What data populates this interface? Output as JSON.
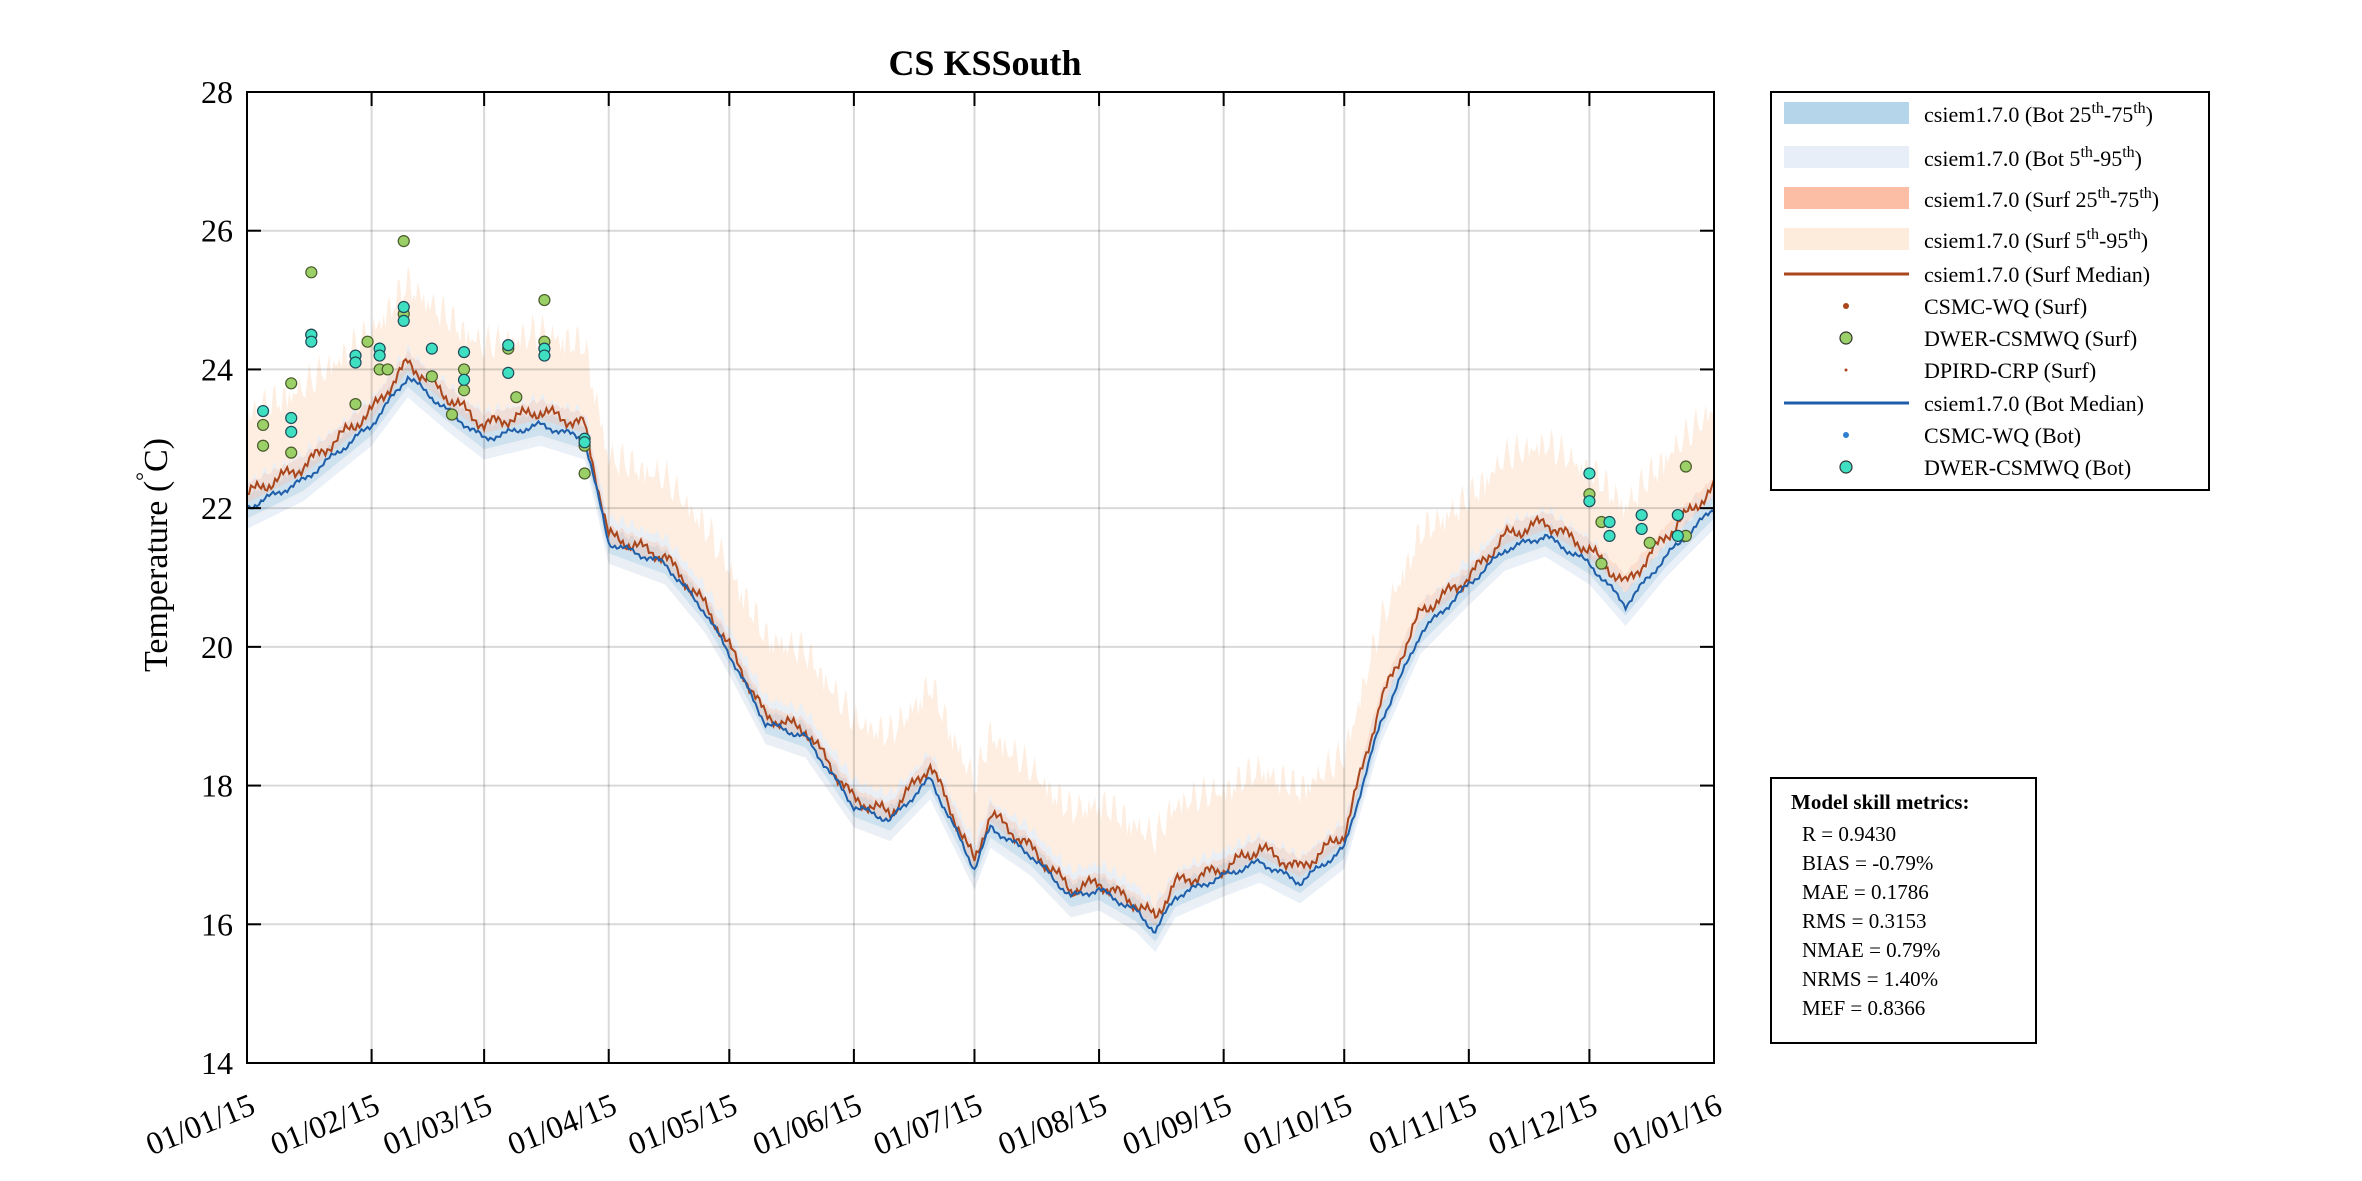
{
  "chart_data": {
    "type": "line",
    "title": "CS KSSouth",
    "ylabel": "Temperature (°C)",
    "ylabel_main": "Temperature (",
    "ylabel_unit": "C)",
    "ylim": [
      14,
      28
    ],
    "yticks": [
      14,
      16,
      18,
      20,
      22,
      24,
      26,
      28
    ],
    "xlim": [
      "2015-01-01",
      "2016-01-01"
    ],
    "xtick_labels": [
      "01/01/15",
      "01/02/15",
      "01/03/15",
      "01/04/15",
      "01/05/15",
      "01/06/15",
      "01/07/15",
      "01/08/15",
      "01/09/15",
      "01/10/15",
      "01/11/15",
      "01/12/15",
      "01/01/16"
    ],
    "grid": true,
    "legend_position": "outside-top-right",
    "colors": {
      "bot_iqr": "#b5d5ea",
      "bot_90": "#e8eef7",
      "surf_iqr": "#fcbfa6",
      "surf_90": "#fdebdc",
      "surf_median": "#a9461c",
      "bot_median": "#1f5ea8",
      "csmc_surf": "#a9461c",
      "dwer_surf_fill": "#9bd068",
      "dpird_surf": "#a9461c",
      "csmc_bot": "#2e7fd1",
      "dwer_bot_fill": "#3fe0c2"
    },
    "series": [
      {
        "name": "csiem1.7.0 (Surf Median)",
        "x": [
          "2015-01-01",
          "2015-01-15",
          "2015-02-01",
          "2015-02-10",
          "2015-02-20",
          "2015-03-01",
          "2015-03-15",
          "2015-03-26",
          "2015-04-01",
          "2015-04-15",
          "2015-04-25",
          "2015-05-01",
          "2015-05-10",
          "2015-05-20",
          "2015-06-01",
          "2015-06-10",
          "2015-06-20",
          "2015-07-01",
          "2015-07-05",
          "2015-07-15",
          "2015-07-25",
          "2015-08-01",
          "2015-08-10",
          "2015-08-15",
          "2015-08-20",
          "2015-09-01",
          "2015-09-10",
          "2015-09-20",
          "2015-10-01",
          "2015-10-10",
          "2015-10-20",
          "2015-11-01",
          "2015-11-10",
          "2015-11-20",
          "2015-12-01",
          "2015-12-10",
          "2015-12-20",
          "2016-01-01"
        ],
        "y": [
          22.2,
          22.6,
          23.4,
          24.1,
          23.6,
          23.2,
          23.4,
          23.2,
          21.6,
          21.3,
          20.6,
          20.0,
          19.0,
          18.8,
          17.8,
          17.6,
          18.3,
          16.9,
          17.6,
          17.1,
          16.5,
          16.6,
          16.3,
          16.1,
          16.6,
          16.8,
          17.1,
          16.8,
          17.3,
          19.2,
          20.5,
          21.0,
          21.6,
          21.8,
          21.4,
          20.9,
          21.6,
          22.3
        ]
      },
      {
        "name": "csiem1.7.0 (Bot Median)",
        "x": [
          "2015-01-01",
          "2015-01-15",
          "2015-02-01",
          "2015-02-10",
          "2015-02-20",
          "2015-03-01",
          "2015-03-15",
          "2015-03-26",
          "2015-04-01",
          "2015-04-15",
          "2015-04-25",
          "2015-05-01",
          "2015-05-10",
          "2015-05-20",
          "2015-06-01",
          "2015-06-10",
          "2015-06-20",
          "2015-07-01",
          "2015-07-05",
          "2015-07-15",
          "2015-07-25",
          "2015-08-01",
          "2015-08-10",
          "2015-08-15",
          "2015-08-20",
          "2015-09-01",
          "2015-09-10",
          "2015-09-20",
          "2015-10-01",
          "2015-10-10",
          "2015-10-20",
          "2015-11-01",
          "2015-11-10",
          "2015-11-20",
          "2015-12-01",
          "2015-12-10",
          "2015-12-20",
          "2016-01-01"
        ],
        "y": [
          22.0,
          22.4,
          23.2,
          23.9,
          23.4,
          23.0,
          23.2,
          23.0,
          21.5,
          21.2,
          20.5,
          19.9,
          18.9,
          18.7,
          17.7,
          17.5,
          18.1,
          16.8,
          17.4,
          17.0,
          16.4,
          16.5,
          16.2,
          15.9,
          16.4,
          16.7,
          16.9,
          16.6,
          17.1,
          18.9,
          20.2,
          20.9,
          21.4,
          21.6,
          21.2,
          20.6,
          21.3,
          22.0
        ]
      },
      {
        "name": "DWER-CSMWQ (Surf)",
        "x": [
          "2015-01-05",
          "2015-01-05",
          "2015-01-12",
          "2015-01-12",
          "2015-01-17",
          "2015-01-17",
          "2015-01-28",
          "2015-01-31",
          "2015-02-03",
          "2015-02-05",
          "2015-02-09",
          "2015-02-09",
          "2015-02-16",
          "2015-02-21",
          "2015-02-24",
          "2015-02-24",
          "2015-03-07",
          "2015-03-09",
          "2015-03-16",
          "2015-03-16",
          "2015-03-26",
          "2015-03-26",
          "2015-12-01",
          "2015-12-04",
          "2015-12-04",
          "2015-12-16",
          "2015-12-25",
          "2015-12-25"
        ],
        "y": [
          23.2,
          22.9,
          23.8,
          22.8,
          25.4,
          24.5,
          23.5,
          24.4,
          24.0,
          24.0,
          25.85,
          24.8,
          23.9,
          23.35,
          23.7,
          24.0,
          24.3,
          23.6,
          25.0,
          24.4,
          22.9,
          22.5,
          22.2,
          21.8,
          21.2,
          21.5,
          21.6,
          22.6
        ]
      },
      {
        "name": "DWER-CSMWQ (Bot)",
        "x": [
          "2015-01-05",
          "2015-01-12",
          "2015-01-12",
          "2015-01-17",
          "2015-01-17",
          "2015-01-28",
          "2015-01-28",
          "2015-02-03",
          "2015-02-03",
          "2015-02-09",
          "2015-02-09",
          "2015-02-16",
          "2015-02-24",
          "2015-02-24",
          "2015-03-07",
          "2015-03-07",
          "2015-03-16",
          "2015-03-16",
          "2015-03-26",
          "2015-03-26",
          "2015-12-01",
          "2015-12-01",
          "2015-12-06",
          "2015-12-06",
          "2015-12-14",
          "2015-12-14",
          "2015-12-23",
          "2015-12-23"
        ],
        "y": [
          23.4,
          23.3,
          23.1,
          24.5,
          24.4,
          24.2,
          24.1,
          24.3,
          24.2,
          24.9,
          24.7,
          24.3,
          24.25,
          23.85,
          24.35,
          23.95,
          24.3,
          24.2,
          23.0,
          22.95,
          22.5,
          22.1,
          21.8,
          21.6,
          21.9,
          21.7,
          21.9,
          21.6
        ]
      },
      {
        "name": "csiem1.7.0 (Bot 25th-75th)"
      },
      {
        "name": "csiem1.7.0 (Bot 5th-95th)"
      },
      {
        "name": "csiem1.7.0 (Surf 25th-75th)"
      },
      {
        "name": "csiem1.7.0 (Surf 5th-95th)"
      },
      {
        "name": "CSMC-WQ (Surf)"
      },
      {
        "name": "DPIRD-CRP (Surf)"
      },
      {
        "name": "CSMC-WQ (Bot)"
      }
    ],
    "legend": [
      {
        "label": "csiem1.7.0 (Bot 25",
        "sup1": "th",
        "mid": "-75",
        "sup2": "th",
        "tail": ")",
        "kind": "patch",
        "color": "#b5d5ea"
      },
      {
        "label": "csiem1.7.0 (Bot 5",
        "sup1": "th",
        "mid": "-95",
        "sup2": "th",
        "tail": ")",
        "kind": "patch",
        "color": "#e8eef7"
      },
      {
        "label": "csiem1.7.0 (Surf 25",
        "sup1": "th",
        "mid": "-75",
        "sup2": "th",
        "tail": ")",
        "kind": "patch",
        "color": "#fcbfa6"
      },
      {
        "label": "csiem1.7.0 (Surf 5",
        "sup1": "th",
        "mid": "-95",
        "sup2": "th",
        "tail": ")",
        "kind": "patch",
        "color": "#fdebdc"
      },
      {
        "label": "csiem1.7.0 (Surf Median)",
        "kind": "line",
        "color": "#a9461c"
      },
      {
        "label": "CSMC-WQ (Surf)",
        "kind": "dot",
        "color": "#a9461c"
      },
      {
        "label": "DWER-CSMWQ (Surf)",
        "kind": "circle",
        "color": "#9bd068"
      },
      {
        "label": "DPIRD-CRP (Surf)",
        "kind": "tiny",
        "color": "#a9461c"
      },
      {
        "label": "csiem1.7.0 (Bot Median)",
        "kind": "line",
        "color": "#1f5ea8"
      },
      {
        "label": "CSMC-WQ (Bot)",
        "kind": "dot",
        "color": "#2e7fd1"
      },
      {
        "label": "DWER-CSMWQ (Bot)",
        "kind": "circle",
        "color": "#3fe0c2"
      }
    ],
    "metrics": {
      "heading": "Model skill metrics:",
      "lines": [
        "R    = 0.9430",
        "BIAS = -0.79%",
        "MAE  = 0.1786",
        "RMS  = 0.3153",
        "NMAE = 0.79%",
        "NRMS = 1.40%",
        "MEF  = 0.8366"
      ]
    }
  }
}
